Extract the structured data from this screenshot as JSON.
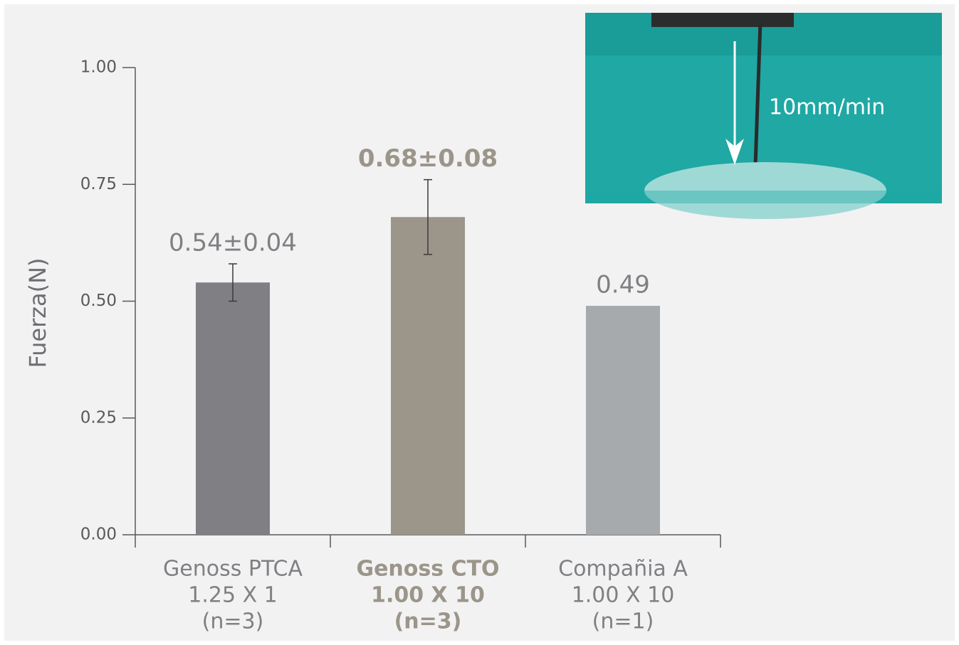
{
  "chart_data": {
    "type": "bar",
    "y_label": "Fuerza(N)",
    "categories": [
      [
        "Genoss PTCA",
        "1.25 X 1",
        "(n=3)"
      ],
      [
        "Genoss CTO",
        "1.00 X 10",
        "(n=3)"
      ],
      [
        "Compañia A",
        "1.00 X 10",
        "(n=1)"
      ]
    ],
    "values": [
      0.54,
      0.68,
      0.49
    ],
    "errors": [
      0.04,
      0.08,
      null
    ],
    "value_labels": [
      "0.54±0.04",
      "0.68±0.08",
      "0.49"
    ],
    "colors": [
      "#808084",
      "#9b958a",
      "#a7aaad"
    ],
    "ylim": [
      0,
      1
    ],
    "yticks": [
      {
        "value": 0,
        "label": "0.00"
      },
      {
        "value": 0.25,
        "label": "0.25"
      },
      {
        "value": 0.5,
        "label": "0.50"
      },
      {
        "value": 0.75,
        "label": "0.75"
      },
      {
        "value": 1,
        "label": "1.00"
      }
    ],
    "inset_label": "10mm/min"
  }
}
